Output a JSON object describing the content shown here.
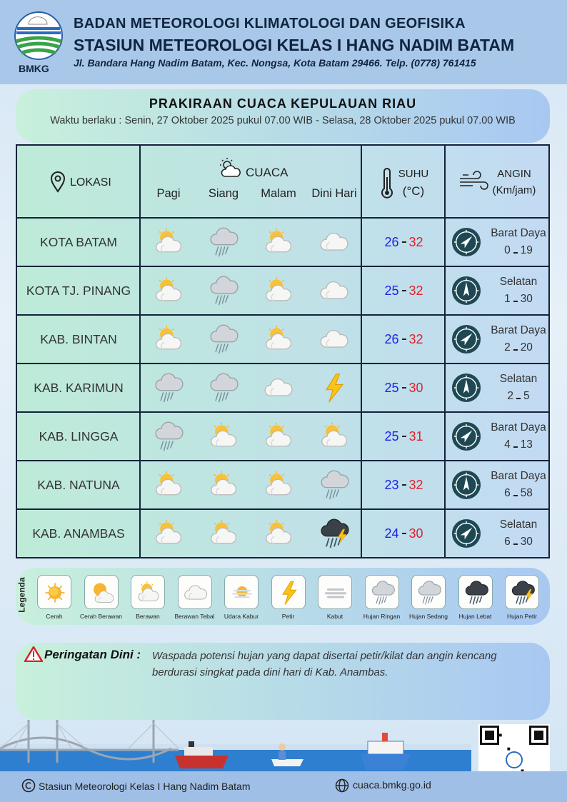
{
  "header": {
    "logo_text": "BMKG",
    "agency": "BADAN METEOROLOGI KLIMATOLOGI DAN GEOFISIKA",
    "station": "STASIUN METEOROLOGI KELAS I HANG NADIM BATAM",
    "address": "Jl. Bandara Hang Nadim Batam, Kec. Nongsa, Kota Batam 29466.  Telp. (0778) 761415"
  },
  "title": {
    "heading": "PRAKIRAAN CUACA KEPULAUAN RIAU",
    "validity": "Waktu berlaku : Senin, 27 Oktober 2025 pukul 07.00 WIB - Selasa, 28 Oktober 2025 pukul 07.00 WIB"
  },
  "table": {
    "columns": {
      "location": "LOKASI",
      "weather": "CUACA",
      "periods": [
        "Pagi",
        "Siang",
        "Malam",
        "Dini Hari"
      ],
      "temperature": "SUHU",
      "temperature_unit": "(°C)",
      "wind": "ANGIN",
      "wind_unit": "(Km/jam)"
    },
    "rows": [
      {
        "location": "KOTA BATAM",
        "temp_min": 26,
        "temp_max": 32,
        "wind_direction": "Barat Daya",
        "wind_min": 0,
        "wind_max": 19
      },
      {
        "location": "KOTA TJ. PINANG",
        "temp_min": 25,
        "temp_max": 32,
        "wind_direction": "Selatan",
        "wind_min": 1,
        "wind_max": 30
      },
      {
        "location": "KAB. BINTAN",
        "temp_min": 26,
        "temp_max": 32,
        "wind_direction": "Barat Daya",
        "wind_min": 2,
        "wind_max": 20
      },
      {
        "location": "KAB. KARIMUN",
        "temp_min": 25,
        "temp_max": 30,
        "wind_direction": "Selatan",
        "wind_min": 2,
        "wind_max": 5
      },
      {
        "location": "KAB. LINGGA",
        "temp_min": 25,
        "temp_max": 31,
        "wind_direction": "Barat Daya",
        "wind_min": 4,
        "wind_max": 13
      },
      {
        "location": "KAB. NATUNA",
        "temp_min": 23,
        "temp_max": 32,
        "wind_direction": "Barat Daya",
        "wind_min": 6,
        "wind_max": 58
      },
      {
        "location": "KAB. ANAMBAS",
        "temp_min": 24,
        "temp_max": 30,
        "wind_direction": "Selatan",
        "wind_min": 6,
        "wind_max": 30
      }
    ]
  },
  "legend": {
    "title": "Legenda",
    "items": [
      "Cerah",
      "Cerah Berawan",
      "Berawan",
      "Berawan Tebal",
      "Udara Kabur",
      "Petir",
      "Kabut",
      "Hujan Ringan",
      "Hujan Sedang",
      "Hujan Lebat",
      "Hujan Petir"
    ]
  },
  "warning": {
    "label": "Peringatan Dini :",
    "text": "Waspada potensi hujan yang dapat disertai petir/kilat dan angin kencang berdurasi singkat pada dini hari di Kab. Anambas."
  },
  "footer": {
    "copyright": "Stasiun Meteorologi Kelas I Hang Nadim Batam",
    "website": "cuaca.bmkg.go.id"
  }
}
